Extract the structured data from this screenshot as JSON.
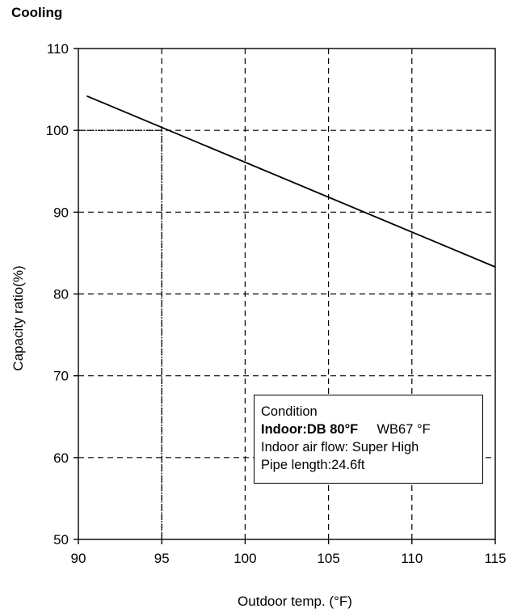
{
  "chart_data": {
    "type": "line",
    "title": "Cooling",
    "xlabel": "Outdoor temp. (°F)",
    "ylabel": "Capacity ratio(%)",
    "xlim": [
      90,
      115
    ],
    "ylim": [
      50,
      110
    ],
    "x_ticks": [
      90,
      95,
      100,
      105,
      110,
      115
    ],
    "y_ticks": [
      50,
      60,
      70,
      80,
      90,
      100,
      110
    ],
    "grid": true,
    "series": [
      {
        "x": [
          90.5,
          115
        ],
        "y": [
          104.2,
          83.3
        ]
      }
    ],
    "reference_lines": [
      {
        "from": [
          95,
          50
        ],
        "to": [
          95,
          100
        ]
      },
      {
        "from": [
          90,
          100
        ],
        "to": [
          95,
          100
        ]
      }
    ],
    "annotation": {
      "heading": "Condition",
      "line1_a": "Indoor:DB 80°F",
      "line1_b": "WB67 °F",
      "line2": "Indoor air flow: Super High",
      "line3": "Pipe length:24.6ft"
    }
  }
}
